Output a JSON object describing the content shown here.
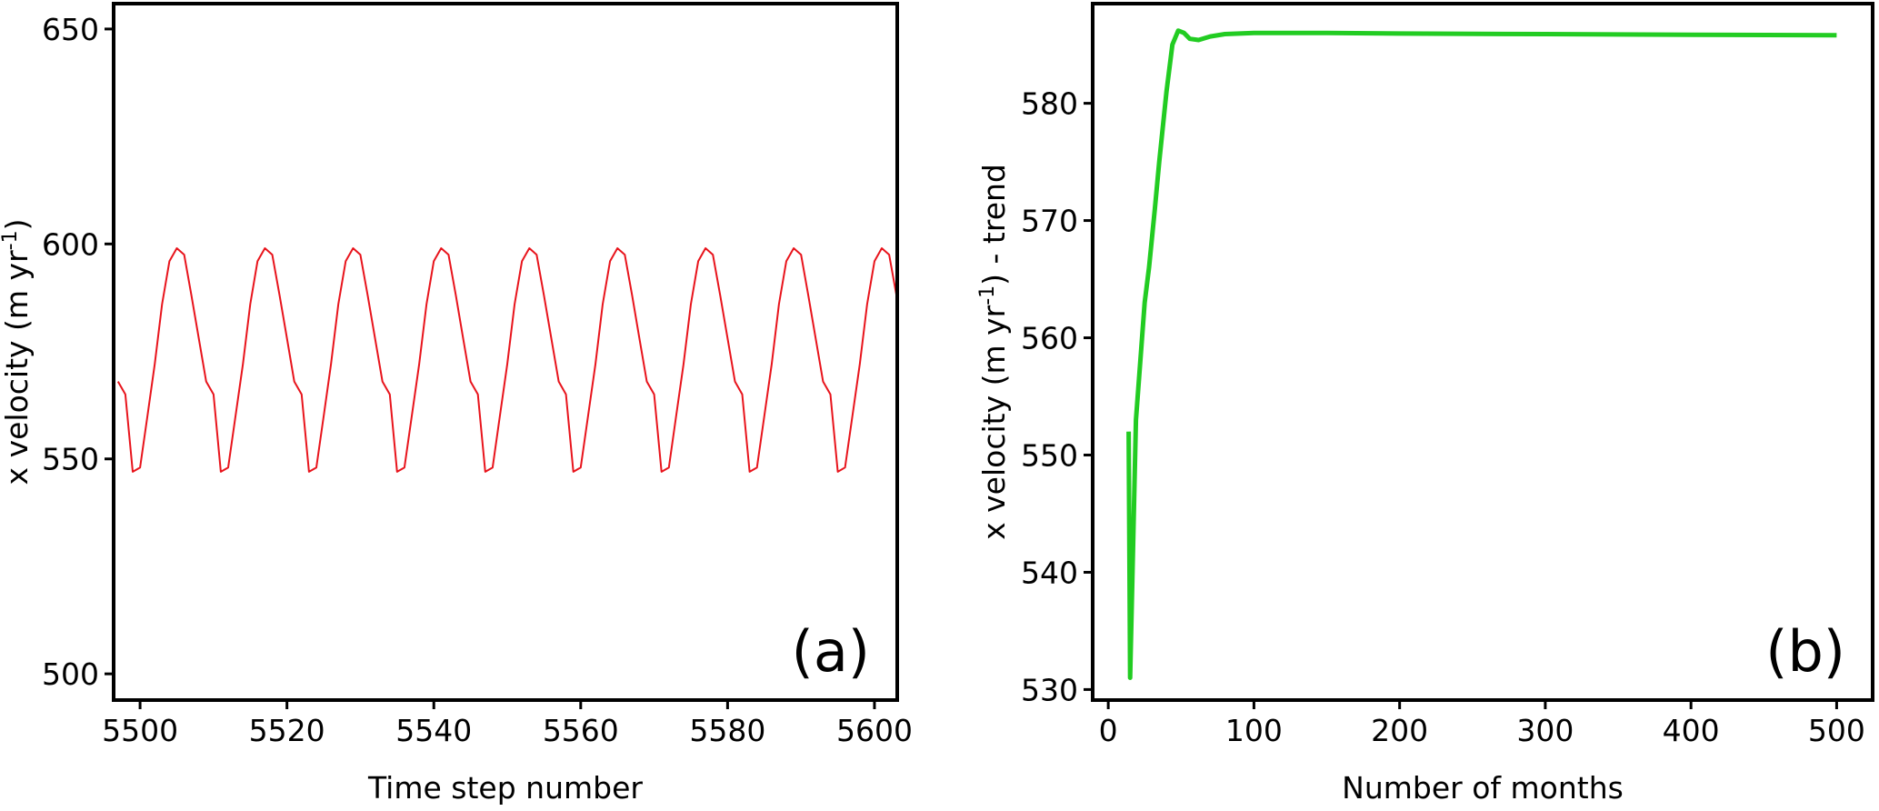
{
  "chart_data": [
    {
      "type": "line",
      "panel_label": "(a)",
      "xlabel": "Time step number",
      "ylabel": [
        "x velocity (m yr",
        "-1",
        ")"
      ],
      "x": [
        5497,
        5498,
        5499,
        5500,
        5501,
        5502,
        5503,
        5504,
        5505,
        5506,
        5507,
        5508,
        5509,
        5510,
        5511,
        5512,
        5513,
        5514,
        5515,
        5516,
        5517,
        5518,
        5519,
        5520,
        5521,
        5522,
        5523,
        5524,
        5525,
        5526,
        5527,
        5528,
        5529,
        5530,
        5531,
        5532,
        5533,
        5534,
        5535,
        5536,
        5537,
        5538,
        5539,
        5540,
        5541,
        5542,
        5543,
        5544,
        5545,
        5546,
        5547,
        5548,
        5549,
        5550,
        5551,
        5552,
        5553,
        5554,
        5555,
        5556,
        5557,
        5558,
        5559,
        5560,
        5561,
        5562,
        5563,
        5564,
        5565,
        5566,
        5567,
        5568,
        5569,
        5570,
        5571,
        5572,
        5573,
        5574,
        5575,
        5576,
        5577,
        5578,
        5579,
        5580,
        5581,
        5582,
        5583,
        5584,
        5585,
        5586,
        5587,
        5588,
        5589,
        5590,
        5591,
        5592,
        5593,
        5594,
        5595,
        5596,
        5597,
        5598,
        5599,
        5600,
        5601,
        5602,
        5603
      ],
      "series": [
        {
          "color": "#e8141c",
          "values": [
            568,
            565,
            547,
            548,
            560,
            572,
            586,
            596,
            599,
            597.5,
            588,
            578,
            568,
            565,
            547,
            548,
            560,
            572,
            586,
            596,
            599,
            597.5,
            588,
            578,
            568,
            565,
            547,
            548,
            560,
            572,
            586,
            596,
            599,
            597.5,
            588,
            578,
            568,
            565,
            547,
            548,
            560,
            572,
            586,
            596,
            599,
            597.5,
            588,
            578,
            568,
            565,
            547,
            548,
            560,
            572,
            586,
            596,
            599,
            597.5,
            588,
            578,
            568,
            565,
            547,
            548,
            560,
            572,
            586,
            596,
            599,
            597.5,
            588,
            578,
            568,
            565,
            547,
            548,
            560,
            572,
            586,
            596,
            599,
            597.5,
            588,
            578,
            568,
            565,
            547,
            548,
            560,
            572,
            586,
            596,
            599,
            597.5,
            588,
            578,
            568,
            565,
            547,
            548,
            560,
            572,
            586,
            596,
            599,
            597.5,
            588
          ]
        }
      ],
      "xlim": [
        5496.4,
        5603.1
      ],
      "xticks": [
        5500,
        5520,
        5540,
        5560,
        5580,
        5600
      ],
      "ylim": [
        493.9,
        655.9
      ],
      "yticks": [
        500,
        550,
        600,
        650
      ]
    },
    {
      "type": "line",
      "panel_label": "(b)",
      "xlabel": "Number of months",
      "ylabel": [
        "x velocity (m yr",
        "-1",
        ") - trend"
      ],
      "x": [
        14,
        15,
        19,
        22,
        25,
        28,
        32,
        35,
        40,
        44,
        48,
        52,
        56,
        62,
        70,
        80,
        100,
        150,
        200,
        300,
        400,
        500
      ],
      "series": [
        {
          "color": "#22cc22",
          "values": [
            552,
            531,
            553,
            558,
            563,
            566,
            571,
            575,
            581,
            585,
            586.2,
            586,
            585.5,
            585.4,
            585.7,
            585.9,
            586,
            586,
            585.95,
            585.9,
            585.85,
            585.8
          ]
        }
      ],
      "xlim": [
        -10.7,
        524.7
      ],
      "xticks": [
        0,
        100,
        200,
        300,
        400,
        500
      ],
      "ylim": [
        529.1,
        588.5
      ],
      "yticks": [
        530,
        540,
        550,
        560,
        570,
        580
      ]
    }
  ]
}
